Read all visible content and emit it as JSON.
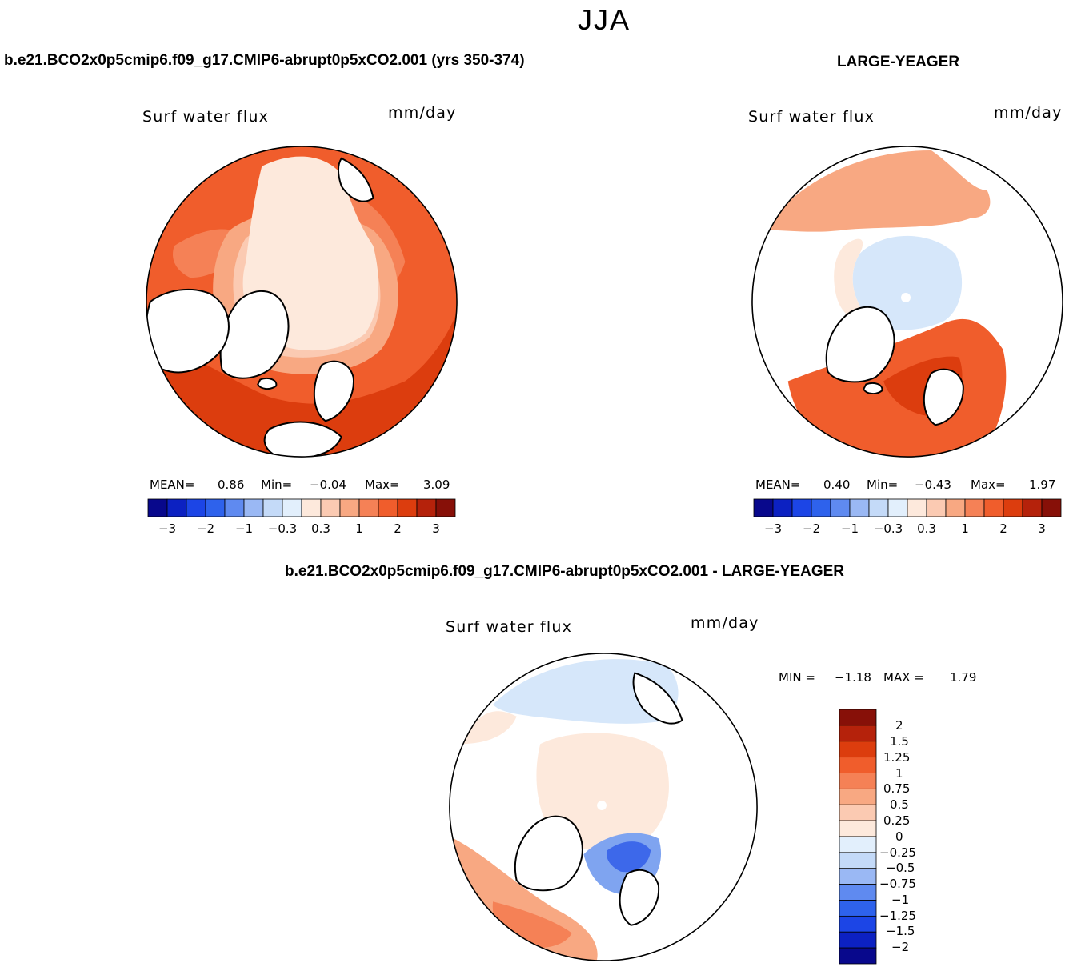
{
  "season": "JJA",
  "units": "mm/day",
  "variable": "Surf water flux",
  "panels": [
    {
      "id": "model",
      "title": "b.e21.BCO2x0p5cmip6.f09_g17.CMIP6-abrupt0p5xCO2.001 (yrs 350-374)",
      "stats": {
        "mean_label": "MEAN=",
        "mean": "0.86",
        "min_label": "Min=",
        "min": "−0.04",
        "max_label": "Max=",
        "max": "3.09"
      }
    },
    {
      "id": "obs",
      "title": "LARGE-YEAGER",
      "stats": {
        "mean_label": "MEAN=",
        "mean": "0.40",
        "min_label": "Min=",
        "min": "−0.43",
        "max_label": "Max=",
        "max": "1.97"
      }
    },
    {
      "id": "diff",
      "title": "b.e21.BCO2x0p5cmip6.f09_g17.CMIP6-abrupt0p5xCO2.001 - LARGE-YEAGER",
      "stats": {
        "min_label": "MIN =",
        "min": "−1.18",
        "max_label": "MAX =",
        "max": "1.79"
      }
    }
  ],
  "colorbar_abs": {
    "colors": [
      "#08088c",
      "#0c21c2",
      "#1c45e6",
      "#2e62ec",
      "#5f8af0",
      "#9ab8f4",
      "#c4daf8",
      "#e2effc",
      "#fde9dc",
      "#fbcab2",
      "#f8a882",
      "#f58156",
      "#f05d2c",
      "#dc3d0e",
      "#b5220b",
      "#871008"
    ],
    "tick_labels": [
      "−3",
      "−2",
      "−1",
      "−0.3",
      "0.3",
      "1",
      "2",
      "3"
    ]
  },
  "colorbar_diff": {
    "colors": [
      "#871008",
      "#b5220b",
      "#dc3d0e",
      "#f05d2c",
      "#f58156",
      "#f8a882",
      "#fbcab2",
      "#fde9dc",
      "#e2effc",
      "#c4daf8",
      "#9ab8f4",
      "#5f8af0",
      "#2e62ec",
      "#1c45e6",
      "#0c21c2",
      "#08088c"
    ],
    "tick_labels": [
      "2",
      "1.5",
      "1.25",
      "1",
      "0.75",
      "0.5",
      "0.25",
      "0",
      "−0.25",
      "−0.5",
      "−0.75",
      "−1",
      "−1.25",
      "−1.5",
      "−2"
    ]
  },
  "map_colors": {
    "land": "#ffffff",
    "outline": "#000000",
    "p_light": "#fde9dc",
    "p_lt": "#fbcab2",
    "p_med": "#f8a882",
    "p_orange": "#f58156",
    "p_strong": "#f05d2c",
    "p_dark": "#dc3d0e",
    "n_light": "#d6e7fa",
    "n_lt": "#b3cdf5",
    "n_med": "#7fa4f0",
    "n_strong": "#3d68ea"
  }
}
